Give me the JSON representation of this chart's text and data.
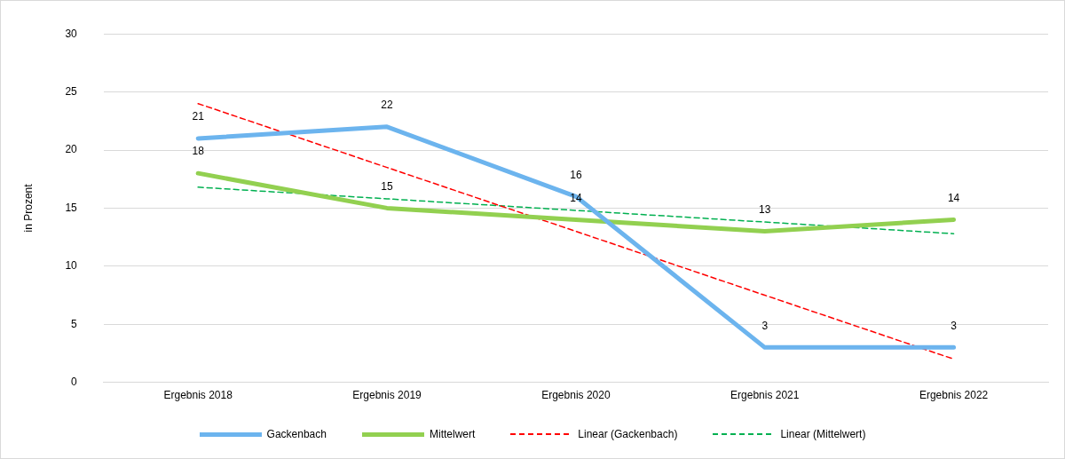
{
  "chart_data": {
    "type": "line",
    "ylabel": "in Prozent",
    "categories": [
      "Ergebnis 2018",
      "Ergebnis 2019",
      "Ergebnis 2020",
      "Ergebnis 2021",
      "Ergebnis 2022"
    ],
    "series": [
      {
        "name": "Gackenbach",
        "color": "#6cb4ee",
        "values": [
          21,
          22,
          16,
          3,
          3
        ],
        "data_labels": true
      },
      {
        "name": "Mittelwert",
        "color": "#92d050",
        "values": [
          18,
          15,
          14,
          13,
          14
        ],
        "data_labels": true
      },
      {
        "name": "Linear (Gackenbach)",
        "color": "#ff0000",
        "values": [
          24,
          18.5,
          13,
          7.5,
          2
        ],
        "line_style": "dashed"
      },
      {
        "name": "Linear (Mittelwert)",
        "color": "#00b050",
        "values": [
          16.8,
          15.8,
          14.8,
          13.8,
          12.8
        ],
        "line_style": "dashed"
      }
    ],
    "ylim": [
      0,
      30
    ],
    "yticks": [
      0,
      5,
      10,
      15,
      20,
      25,
      30
    ],
    "grid": "y",
    "legend": "bottom",
    "marker": "none"
  }
}
